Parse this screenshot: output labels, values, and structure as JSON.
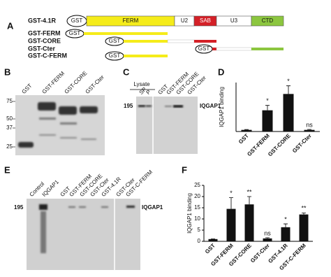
{
  "figure": {
    "panel_labels": [
      "A",
      "B",
      "C",
      "D",
      "E",
      "F"
    ],
    "schematic": {
      "full": {
        "name": "GST-4.1R",
        "domains": [
          "GST",
          "FERM",
          "U2",
          "SAB",
          "U3",
          "CTD"
        ]
      },
      "constructs": [
        {
          "name": "GST-FERM",
          "tag": "GST"
        },
        {
          "name": "GST-CORE",
          "tag": "GST"
        },
        {
          "name": "GST-Cter",
          "tag": "GST"
        },
        {
          "name": "GST-C-FERM",
          "tag": "GST"
        }
      ]
    },
    "gel_b": {
      "lanes": [
        "GST",
        "GST-FERM",
        "GST-CORE",
        "GST-Cter"
      ],
      "markers": [
        75,
        50,
        37,
        25
      ]
    },
    "gel_c": {
      "group": "Lysate",
      "lanes": [
        "SP",
        "P",
        "GST",
        "GST-FERM",
        "GST-CORE",
        "GST-Cter"
      ],
      "marker": 195,
      "band": "IQGAP1"
    },
    "gel_e": {
      "lanes": [
        "Control",
        "IQGAP1",
        "GST",
        "GST-FERM",
        "GST-CORE",
        "GST-Cter",
        "GST-4.1R",
        "GST-Cter",
        "GST-C-FERM"
      ],
      "marker": 195,
      "band": "IQGAP1"
    }
  },
  "chart_data": [
    {
      "type": "bar",
      "y_label": "IQGAP1 binding",
      "categories": [
        "GST",
        "GST-FERM",
        "GST-CORE",
        "GST-Cter"
      ],
      "values": [
        1,
        13,
        23,
        1
      ],
      "errors": [
        0.2,
        3,
        5,
        0.3
      ],
      "annotations": [
        null,
        "*",
        "*",
        "ns"
      ],
      "color": "#111111",
      "ylim": [
        0,
        30
      ]
    },
    {
      "type": "bar",
      "y_label": "IQGAP1 binding",
      "categories": [
        "GST",
        "GST-FERM",
        "GST-CORE",
        "GST-Cter",
        "GST-4.1R",
        "GST-C-FERM"
      ],
      "values": [
        1,
        14.5,
        16.5,
        1.3,
        6.3,
        12
      ],
      "errors": [
        0.1,
        5,
        3.5,
        0.3,
        1.5,
        0.7
      ],
      "annotations": [
        null,
        "*",
        "**",
        "ns",
        "*",
        "**"
      ],
      "color": "#111111",
      "ylim": [
        0,
        25
      ],
      "yticks": [
        0,
        5,
        10,
        15,
        20,
        25
      ]
    }
  ]
}
